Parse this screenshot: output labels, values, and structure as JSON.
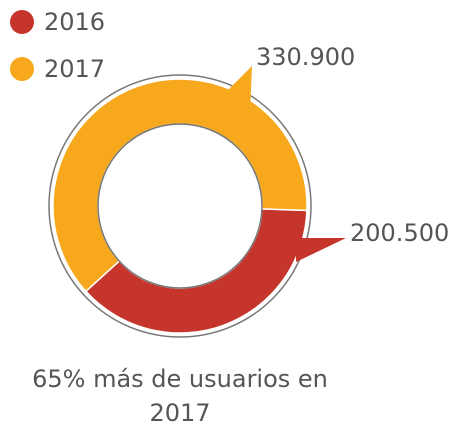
{
  "chart_data": {
    "type": "pie",
    "categories": [
      "2016",
      "2017"
    ],
    "values": [
      200500,
      330900
    ],
    "value_labels": [
      "200.500",
      "330.900"
    ],
    "colors": [
      "#c5352b",
      "#f8a81c"
    ],
    "caption": "65% más de usuarios en 2017"
  }
}
